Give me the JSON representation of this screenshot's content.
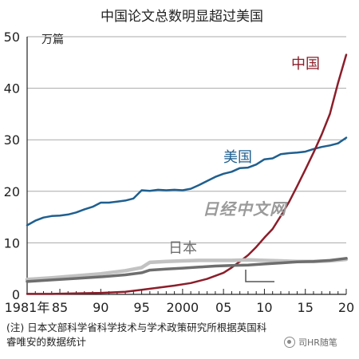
{
  "chart_data": {
    "type": "line",
    "title": "中国论文总数明显超过美国",
    "ylabel": "万篇",
    "ylim": [
      0,
      50
    ],
    "yticks": [
      "0",
      "10",
      "20",
      "30",
      "40",
      "50"
    ],
    "xlim": [
      1981,
      2020
    ],
    "xticks": [
      {
        "year": 1981,
        "label": "1981年"
      },
      {
        "year": 1985,
        "label": "85"
      },
      {
        "year": 1990,
        "label": "90"
      },
      {
        "year": 1995,
        "label": "95"
      },
      {
        "year": 2000,
        "label": "2000"
      },
      {
        "year": 2005,
        "label": "05"
      },
      {
        "year": 2010,
        "label": "10"
      },
      {
        "year": 2015,
        "label": "15"
      },
      {
        "year": 2020,
        "label": "20"
      }
    ],
    "grid": "horizontal",
    "series": [
      {
        "name": "美国",
        "color": "#1f5f8f",
        "x": [
          1981,
          1982,
          1983,
          1984,
          1985,
          1986,
          1987,
          1988,
          1989,
          1990,
          1991,
          1992,
          1993,
          1994,
          1995,
          1996,
          1997,
          1998,
          1999,
          2000,
          2001,
          2002,
          2003,
          2004,
          2005,
          2006,
          2007,
          2008,
          2009,
          2010,
          2011,
          2012,
          2013,
          2014,
          2015,
          2016,
          2017,
          2018,
          2019,
          2020
        ],
        "values": [
          13.4,
          14.3,
          14.9,
          15.2,
          15.3,
          15.5,
          15.9,
          16.5,
          17.0,
          17.8,
          17.8,
          18.0,
          18.2,
          18.6,
          20.2,
          20.1,
          20.3,
          20.2,
          20.3,
          20.2,
          20.5,
          21.2,
          22.0,
          22.8,
          23.4,
          23.8,
          24.5,
          24.6,
          25.2,
          26.2,
          26.4,
          27.2,
          27.4,
          27.5,
          27.7,
          28.2,
          28.6,
          28.9,
          29.3,
          30.4
        ]
      },
      {
        "name": "中国",
        "color": "#8b1e2a",
        "x": [
          1981,
          1984,
          1987,
          1990,
          1993,
          1995,
          1997,
          1999,
          2001,
          2003,
          2005,
          2006,
          2007,
          2008,
          2009,
          2010,
          2011,
          2012,
          2013,
          2014,
          2015,
          2016,
          2017,
          2018,
          2019,
          2020
        ],
        "values": [
          0.1,
          0.1,
          0.2,
          0.3,
          0.5,
          0.9,
          1.3,
          1.7,
          2.2,
          3.0,
          4.2,
          5.2,
          6.4,
          7.6,
          9.2,
          11.0,
          12.7,
          15.2,
          17.9,
          21.0,
          24.2,
          27.5,
          31.0,
          35.0,
          41.0,
          46.5
        ]
      },
      {
        "name": "日本",
        "color": "#c2c2c2",
        "x": [
          1981,
          1984,
          1987,
          1990,
          1993,
          1995,
          1996,
          1998,
          2000,
          2002,
          2004,
          2006,
          2008,
          2010,
          2012,
          2014,
          2016,
          2018,
          2020
        ],
        "values": [
          2.9,
          3.2,
          3.6,
          4.0,
          4.6,
          5.2,
          6.2,
          6.4,
          6.5,
          6.6,
          6.6,
          6.6,
          6.7,
          6.6,
          6.5,
          6.4,
          6.4,
          6.5,
          6.8
        ]
      },
      {
        "name": "",
        "color": "#6e6e6e",
        "x": [
          1981,
          1984,
          1987,
          1990,
          1993,
          1995,
          1996,
          1998,
          2000,
          2002,
          2004,
          2006,
          2008,
          2010,
          2012,
          2014,
          2016,
          2018,
          2020
        ],
        "values": [
          2.5,
          2.8,
          3.1,
          3.4,
          3.8,
          4.2,
          4.7,
          4.9,
          5.1,
          5.3,
          5.5,
          5.6,
          5.7,
          5.9,
          6.1,
          6.3,
          6.4,
          6.6,
          7.0
        ]
      }
    ],
    "series_labels": [
      {
        "series": 0,
        "text": "美国"
      },
      {
        "series": 1,
        "text": "中国"
      },
      {
        "series": 2,
        "text": "日本"
      }
    ],
    "note": "(注) 日本文部科学省科学技术与学术政策研究所根据英国科睿唯安的数据统计"
  },
  "watermark": "日经中文网",
  "wechat_account": "司HR随笔",
  "wechat_icon": "wechat-icon"
}
